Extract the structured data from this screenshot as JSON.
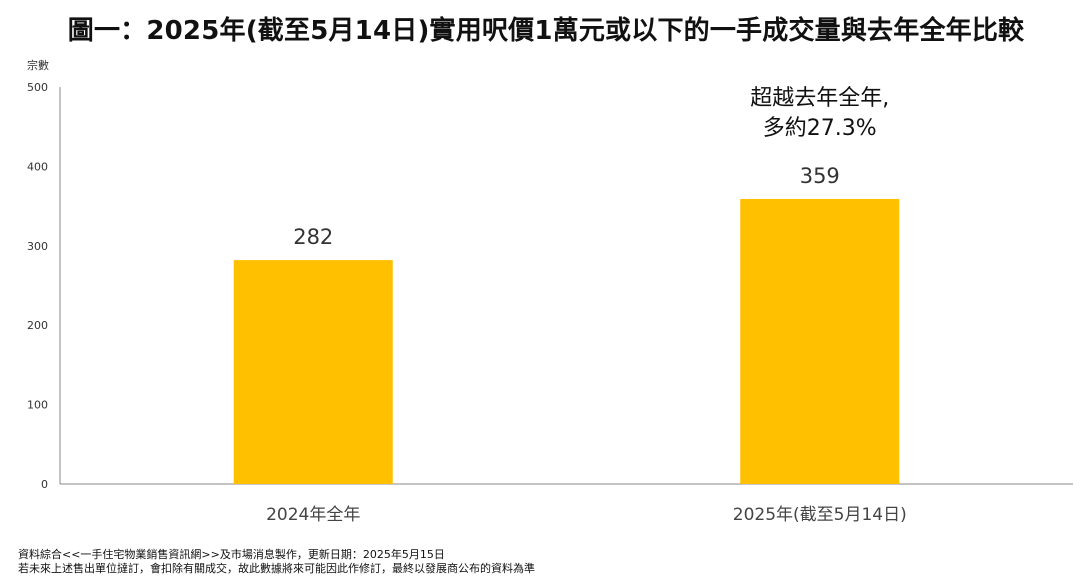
{
  "colors": {
    "bar": "#FFC000",
    "axis": "#888888",
    "text": "#333333"
  },
  "chart_data": {
    "type": "bar",
    "title": "圖一：2025年(截至5月14日)實用呎價1萬元或以下的一手成交量與去年全年比較",
    "ylabel": "宗數",
    "xlabel": "",
    "ylim": [
      0,
      500
    ],
    "yticks": [
      0,
      100,
      200,
      300,
      400,
      500
    ],
    "grid": false,
    "categories": [
      "2024年全年",
      "2025年(截至5月14日)"
    ],
    "values": [
      282,
      359
    ],
    "data_labels": [
      "282",
      "359"
    ],
    "annotation": {
      "lines": [
        "超越去年全年,",
        "多約27.3%"
      ],
      "category_index": 1
    }
  },
  "footnote": {
    "line1": "資料綜合<<一手住宅物業銷售資訊網>>及市場消息製作，更新日期：2025年5月15日",
    "line2": "若未來上述售出單位撻訂，會扣除有關成交，故此數據將來可能因此作修訂，最終以發展商公布的資料為準"
  }
}
